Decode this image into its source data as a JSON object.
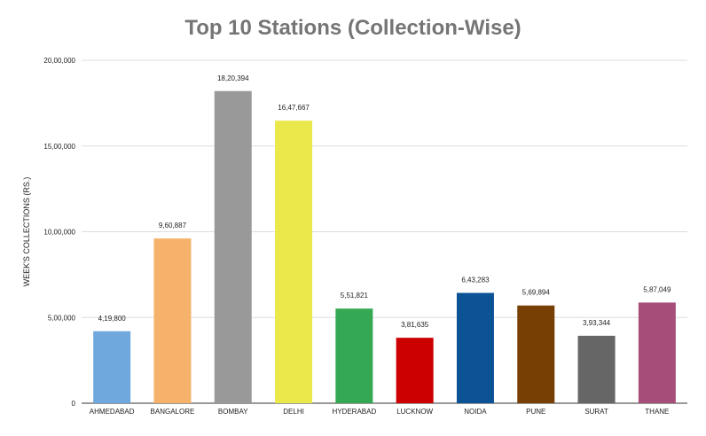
{
  "chart_data": {
    "type": "bar",
    "title": "Top 10 Stations (Collection-Wise)",
    "xlabel": "",
    "ylabel": "WEEK'S COLLECTIONS (RS.)",
    "categories": [
      "AHMEDABAD",
      "BANGALORE",
      "BOMBAY",
      "DELHI",
      "HYDERABAD",
      "LUCKNOW",
      "NOIDA",
      "PUNE",
      "SURAT",
      "THANE"
    ],
    "values": [
      419800,
      960887,
      1820394,
      1647667,
      551821,
      381635,
      643283,
      569894,
      393344,
      587049
    ],
    "data_labels": [
      "4,19,800",
      "9,60,887",
      "18,20,394",
      "16,47,667",
      "5,51,821",
      "3,81,635",
      "6,43,283",
      "5,69,894",
      "3,93,344",
      "5,87,049"
    ],
    "colors": [
      "#6fa8dc",
      "#f6b26b",
      "#999999",
      "#eae84a",
      "#34a853",
      "#cc0000",
      "#0b5394",
      "#783f04",
      "#666666",
      "#a64d79"
    ],
    "ylim": [
      0,
      2000000
    ],
    "yticks": [
      0,
      500000,
      1000000,
      1500000,
      2000000
    ],
    "ytick_labels": [
      "0",
      "5,00,000",
      "10,00,000",
      "15,00,000",
      "20,00,000"
    ],
    "grid": true,
    "legend": "none"
  }
}
